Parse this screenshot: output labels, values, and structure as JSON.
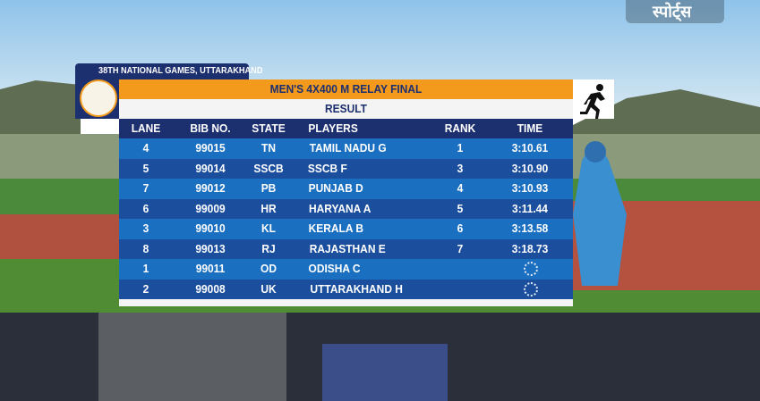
{
  "broadcaster": "स्पोर्ट्स",
  "header": {
    "event": "38TH NATIONAL GAMES, UTTARAKHAND",
    "title": "MEN'S 4X400 M RELAY FINAL",
    "subtitle": "RESULT"
  },
  "table": {
    "columns": [
      "LANE",
      "BIB NO.",
      "STATE",
      "PLAYERS",
      "RANK",
      "TIME"
    ],
    "rows": [
      {
        "lane": "4",
        "bib": "99015",
        "state": "TN",
        "player": "TAMIL NADU G",
        "rank": "1",
        "time": "3:10.61"
      },
      {
        "lane": "5",
        "bib": "99014",
        "state": "SSCB",
        "player": "SSCB F",
        "rank": "3",
        "time": "3:10.90"
      },
      {
        "lane": "7",
        "bib": "99012",
        "state": "PB",
        "player": "PUNJAB D",
        "rank": "4",
        "time": "3:10.93"
      },
      {
        "lane": "6",
        "bib": "99009",
        "state": "HR",
        "player": "HARYANA A",
        "rank": "5",
        "time": "3:11.44"
      },
      {
        "lane": "3",
        "bib": "99010",
        "state": "KL",
        "player": "KERALA B",
        "rank": "6",
        "time": "3:13.58"
      },
      {
        "lane": "8",
        "bib": "99013",
        "state": "RJ",
        "player": "RAJASTHAN E",
        "rank": "7",
        "time": "3:18.73"
      },
      {
        "lane": "1",
        "bib": "99011",
        "state": "OD",
        "player": "ODISHA C"
      },
      {
        "lane": "2",
        "bib": "99008",
        "state": "UK",
        "player": "UTTARAKHAND H"
      }
    ]
  }
}
